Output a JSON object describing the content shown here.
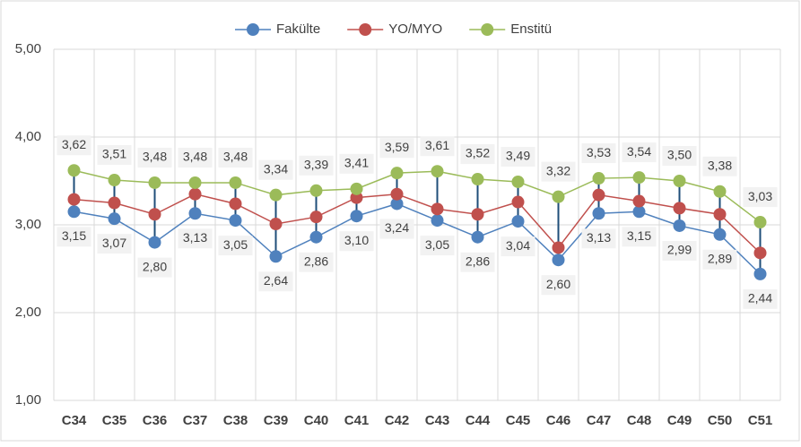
{
  "chart_data": {
    "type": "line",
    "categories": [
      "C34",
      "C35",
      "C36",
      "C37",
      "C38",
      "C39",
      "C40",
      "C41",
      "C42",
      "C43",
      "C44",
      "C45",
      "C46",
      "C47",
      "C48",
      "C49",
      "C50",
      "C51"
    ],
    "series": [
      {
        "name": "Fakülte",
        "color": "#4f81bd",
        "values": [
          3.15,
          3.07,
          2.8,
          3.13,
          3.05,
          2.64,
          2.86,
          3.1,
          3.24,
          3.05,
          2.86,
          3.04,
          2.6,
          3.13,
          3.15,
          2.99,
          2.89,
          2.44
        ],
        "value_labels": [
          "3,15",
          "3,07",
          "2,80",
          "3,13",
          "3,05",
          "2,64",
          "2,86",
          "3,10",
          "3,24",
          "3,05",
          "2,86",
          "3,04",
          "2,60",
          "3,13",
          "3,15",
          "2,99",
          "2,89",
          "2,44"
        ]
      },
      {
        "name": "YO/MYO",
        "color": "#c0504d",
        "values": [
          3.29,
          3.25,
          3.12,
          3.35,
          3.24,
          3.01,
          3.09,
          3.31,
          3.35,
          3.18,
          3.12,
          3.26,
          2.74,
          3.34,
          3.27,
          3.19,
          3.12,
          2.68
        ]
      },
      {
        "name": "Enstitü",
        "color": "#9bbb59",
        "values": [
          3.62,
          3.51,
          3.48,
          3.48,
          3.48,
          3.34,
          3.39,
          3.41,
          3.59,
          3.61,
          3.52,
          3.49,
          3.32,
          3.53,
          3.54,
          3.5,
          3.38,
          3.03
        ],
        "value_labels": [
          "3,62",
          "3,51",
          "3,48",
          "3,48",
          "3,48",
          "3,34",
          "3,39",
          "3,41",
          "3,59",
          "3,61",
          "3,52",
          "3,49",
          "3,32",
          "3,53",
          "3,54",
          "3,50",
          "3,38",
          "3,03"
        ]
      }
    ],
    "high_low_color": "#1f4e79",
    "ylim": [
      1,
      5
    ],
    "yticks": [
      {
        "value": 1,
        "label": "1,00"
      },
      {
        "value": 2,
        "label": "2,00"
      },
      {
        "value": 3,
        "label": "3,00"
      },
      {
        "value": 4,
        "label": "4,00"
      },
      {
        "value": 5,
        "label": "5,00"
      }
    ],
    "grid": true
  }
}
